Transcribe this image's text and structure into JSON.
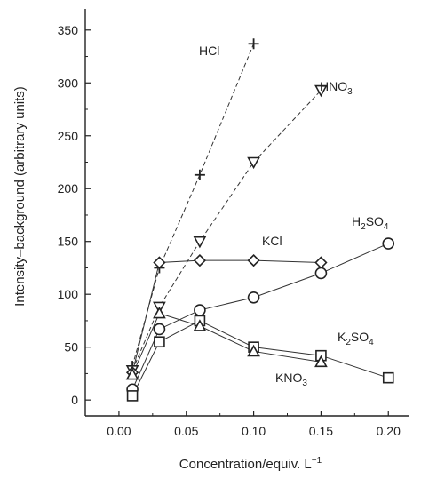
{
  "chart_data": {
    "type": "line",
    "title": "",
    "xlabel": "Concentration/equiv. L",
    "xlabel_sup": "−1",
    "ylabel": "Intensity–background (arbitrary units)",
    "xlim": [
      -0.025,
      0.215
    ],
    "ylim": [
      -15,
      370
    ],
    "xticks": [
      "0.00",
      "0.05",
      "0.10",
      "0.15",
      "0.20"
    ],
    "xtick_values": [
      0.0,
      0.05,
      0.1,
      0.15,
      0.2
    ],
    "yticks": [
      "0",
      "50",
      "100",
      "150",
      "200",
      "250",
      "300",
      "350"
    ],
    "ytick_values": [
      0,
      50,
      100,
      150,
      200,
      250,
      300,
      350
    ],
    "grid": false,
    "series": [
      {
        "name": "HCl",
        "marker": "plus",
        "line": "dashed",
        "x": [
          0.01,
          0.03,
          0.06,
          0.1
        ],
        "y": [
          32,
          125,
          213,
          337
        ]
      },
      {
        "name": "HNO",
        "name_sub": "3",
        "marker": "triangle-down",
        "line": "dashed",
        "x": [
          0.01,
          0.03,
          0.06,
          0.1,
          0.15
        ],
        "y": [
          28,
          88,
          150,
          225,
          293
        ]
      },
      {
        "name": "KCl",
        "marker": "diamond",
        "line": "solid",
        "x": [
          0.01,
          0.03,
          0.06,
          0.1,
          0.15
        ],
        "y": [
          26,
          130,
          132,
          132,
          130
        ]
      },
      {
        "name": "H",
        "name_sub": "2",
        "name_rest": "SO",
        "name_sub2": "4",
        "marker": "circle",
        "line": "solid",
        "x": [
          0.01,
          0.03,
          0.06,
          0.1,
          0.15,
          0.2
        ],
        "y": [
          10,
          67,
          85,
          97,
          120,
          148
        ]
      },
      {
        "name": "K",
        "name_sub": "2",
        "name_rest": "SO",
        "name_sub2": "4",
        "marker": "square",
        "line": "solid",
        "x": [
          0.01,
          0.03,
          0.06,
          0.1,
          0.15,
          0.2
        ],
        "y": [
          4,
          55,
          75,
          50,
          42,
          21
        ]
      },
      {
        "name": "KNO",
        "name_sub": "3",
        "marker": "triangle-up",
        "line": "solid",
        "x": [
          0.01,
          0.03,
          0.06,
          0.1,
          0.15
        ],
        "y": [
          24,
          82,
          70,
          46,
          36
        ]
      }
    ]
  }
}
